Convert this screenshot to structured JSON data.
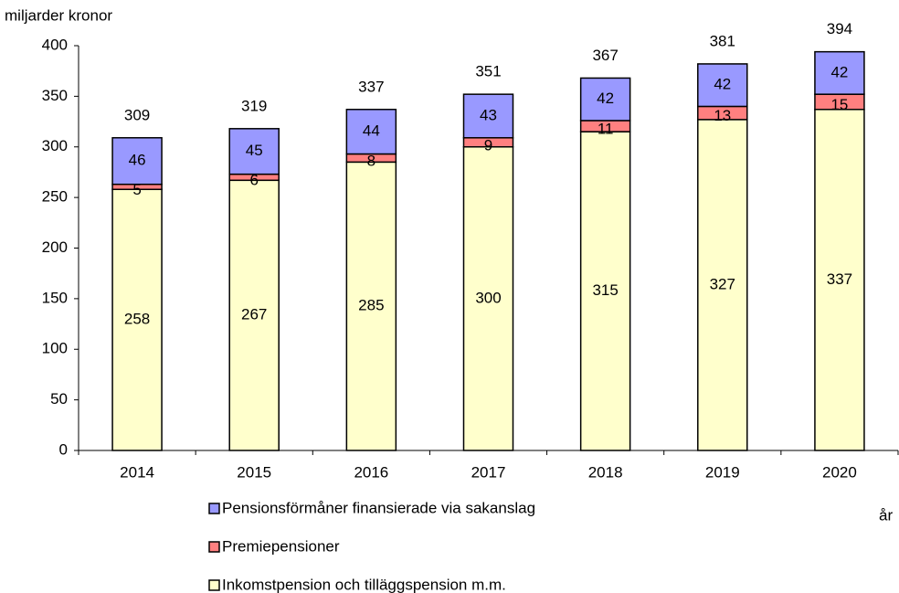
{
  "chart_data": {
    "type": "stacked-bar",
    "y_label": "miljarder kronor",
    "x_label": "år",
    "categories": [
      "2014",
      "2015",
      "2016",
      "2017",
      "2018",
      "2019",
      "2020"
    ],
    "series": [
      {
        "name": "Inkomstpension och tilläggspension m.m.",
        "color": "#ffffcc",
        "values": [
          258,
          267,
          285,
          300,
          315,
          327,
          337
        ]
      },
      {
        "name": "Premiepensioner",
        "color": "#ff8080",
        "values": [
          5,
          6,
          8,
          9,
          11,
          13,
          15
        ]
      },
      {
        "name": "Pensionsförmåner finansierade via sakanslag",
        "color": "#9999ff",
        "values": [
          46,
          45,
          44,
          43,
          42,
          42,
          42
        ]
      }
    ],
    "totals": [
      309,
      319,
      337,
      351,
      367,
      381,
      394
    ],
    "ylim": [
      0,
      400
    ],
    "yticks": [
      0,
      50,
      100,
      150,
      200,
      250,
      300,
      350,
      400
    ],
    "grid": false,
    "legend": "bottom"
  }
}
